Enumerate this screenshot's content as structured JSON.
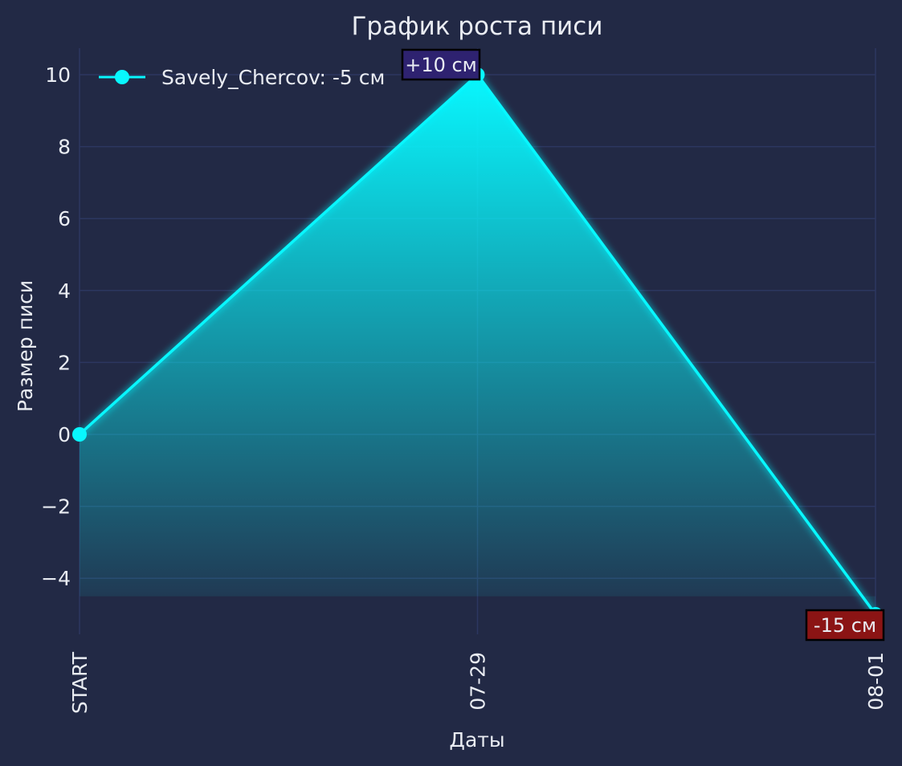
{
  "chart_data": {
    "type": "line",
    "title": "График роста писи",
    "xlabel": "Даты",
    "ylabel": "Размер писи",
    "categories": [
      "START",
      "07-29",
      "08-01"
    ],
    "series": [
      {
        "name": "Savely_Chercov: -5 см",
        "values": [
          0,
          10,
          -5
        ]
      }
    ],
    "yticks": [
      "10",
      "8",
      "6",
      "4",
      "2",
      "0",
      "−2",
      "−4"
    ],
    "ylim": [
      -5.6,
      10.7
    ],
    "annotations": [
      {
        "category": "07-29",
        "value": 10,
        "text": "+10 см",
        "color": "#2e2270"
      },
      {
        "category": "08-01",
        "value": -5,
        "text": "-15 см",
        "color": "#8b1414"
      }
    ],
    "grid": true,
    "legend_position": "top-left"
  },
  "colors": {
    "background": "#222945",
    "grid": "#2c3760",
    "line": "#08f7fe",
    "text": "#e9ecf2"
  }
}
